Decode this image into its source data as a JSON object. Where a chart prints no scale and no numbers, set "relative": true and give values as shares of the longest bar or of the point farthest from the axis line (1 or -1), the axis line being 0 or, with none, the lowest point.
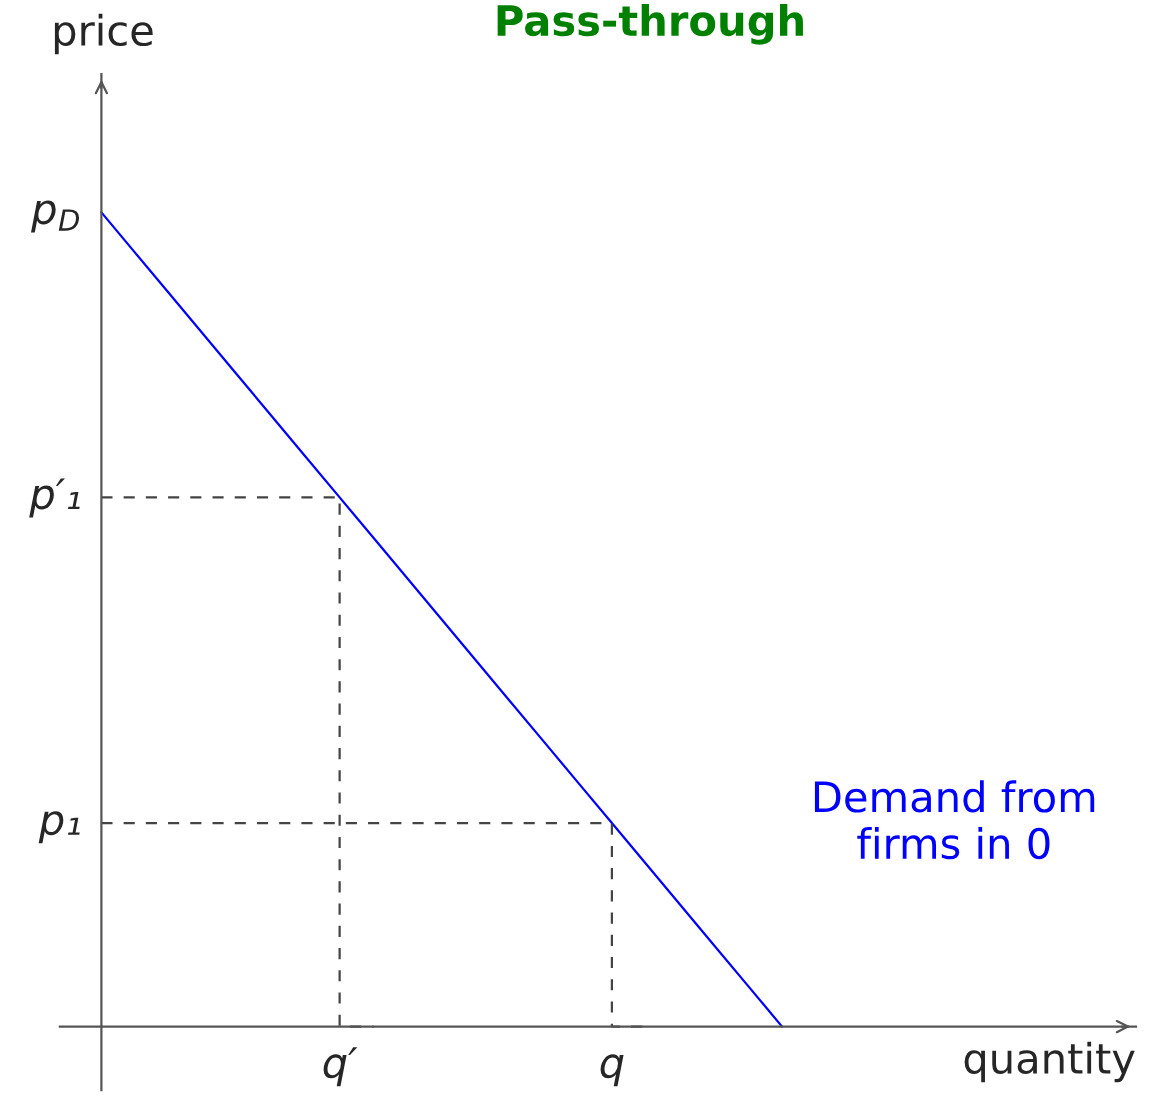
{
  "chart_data": {
    "type": "line",
    "title": "Pass-through",
    "xlabel": "quantity",
    "ylabel": "price",
    "relative": true,
    "categories": [
      null,
      null,
      null,
      null,
      null,
      null,
      null,
      "q′",
      null,
      null,
      null,
      null,
      null,
      null,
      null,
      "q",
      null,
      null,
      null,
      null,
      null,
      null,
      null,
      null,
      null,
      null,
      null,
      null,
      null,
      null,
      null
    ],
    "annotations": [
      "p$_{D}$",
      "p′₁",
      "p₁"
    ],
    "series": [
      {
        "name": "Demand from\nfirms in 0",
        "color": "#0000ff",
        "values": [
          1,
          0.95,
          0.9,
          0.85,
          0.8,
          0.75,
          0.7,
          0.65,
          0.6,
          0.55,
          0.5,
          0.45,
          0.4,
          0.35,
          0.3,
          0.25,
          0.2,
          0.15,
          0.1,
          0.05,
          0,
          null,
          null,
          null,
          null,
          null,
          null,
          null,
          null,
          null,
          null
        ]
      },
      {
        "type": "step",
        "color": "#444444",
        "line_style": "dashed",
        "values": [
          0.65,
          0.65,
          0.65,
          0.65,
          0.65,
          0.65,
          0.65,
          0.65,
          0,
          null,
          null,
          null,
          null,
          null,
          null,
          null,
          null,
          null,
          null,
          null,
          null,
          null,
          null,
          null,
          null,
          null,
          null,
          null,
          null,
          null,
          null
        ]
      },
      {
        "type": "step",
        "color": "#444444",
        "line_style": "dashed",
        "values": [
          0.25,
          0.25,
          0.25,
          0.25,
          0.25,
          0.25,
          0.25,
          0.25,
          0.25,
          0.25,
          0.25,
          0.25,
          0.25,
          0.25,
          0.25,
          0.25,
          0,
          null,
          null,
          null,
          null,
          null,
          null,
          null,
          null,
          null,
          null,
          null,
          null,
          null,
          null
        ]
      }
    ]
  }
}
